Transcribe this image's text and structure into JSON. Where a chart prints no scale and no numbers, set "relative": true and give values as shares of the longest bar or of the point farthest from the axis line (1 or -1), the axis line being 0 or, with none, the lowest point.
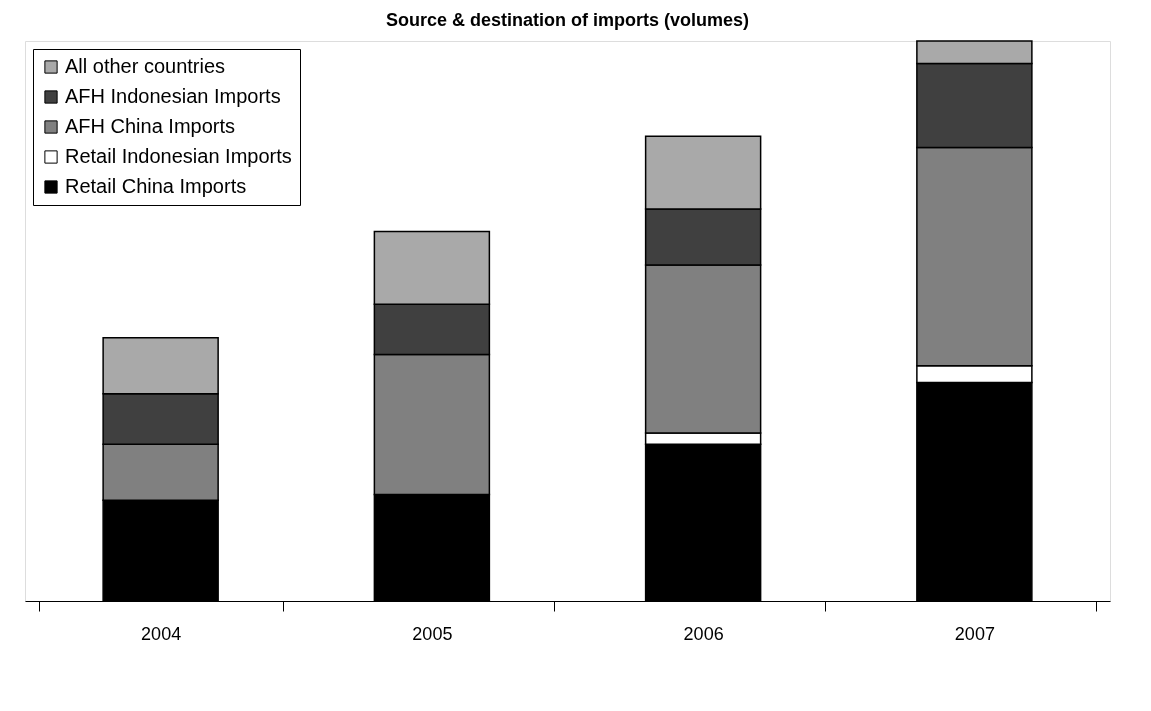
{
  "chart_data": {
    "type": "bar",
    "title": "Source & destination of imports (volumes)",
    "categories": [
      "2004",
      "2005",
      "2006",
      "2007"
    ],
    "stacked": true,
    "relative": true,
    "legend": "top left",
    "series": [
      {
        "name": "Retail China Imports",
        "color": "#000000",
        "values": [
          0.18,
          0.19,
          0.28,
          0.39
        ]
      },
      {
        "name": "Retail Indonesian Imports",
        "color": "#ffffff",
        "values": [
          0,
          0,
          0.02,
          0.03
        ]
      },
      {
        "name": "AFH China Imports",
        "color": "#808080",
        "values": [
          0.1,
          0.25,
          0.3,
          0.39
        ]
      },
      {
        "name": "AFH Indonesian Imports",
        "color": "#404040",
        "values": [
          0.09,
          0.09,
          0.1,
          0.15
        ]
      },
      {
        "name": "All other countries",
        "color": "#a9a9a9",
        "values": [
          0.1,
          0.13,
          0.13,
          0.04
        ]
      }
    ]
  }
}
